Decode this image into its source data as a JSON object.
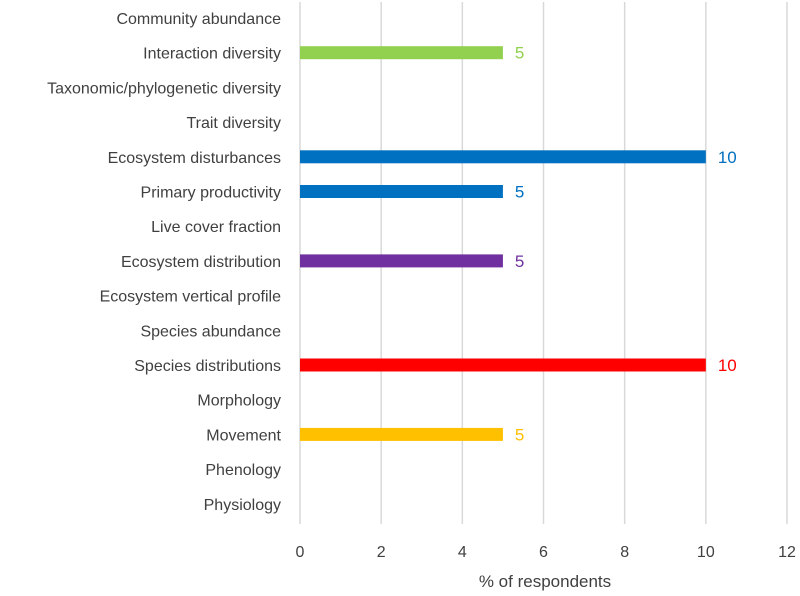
{
  "chart_data": {
    "type": "bar",
    "orientation": "horizontal",
    "categories": [
      "Community abundance",
      "Interaction diversity",
      "Taxonomic/phylogenetic diversity",
      "Trait diversity",
      "Ecosystem disturbances",
      "Primary productivity",
      "Live cover fraction",
      "Ecosystem distribution",
      "Ecosystem vertical profile",
      "Species abundance",
      "Species distributions",
      "Morphology",
      "Movement",
      "Phenology",
      "Physiology"
    ],
    "values": [
      0,
      5,
      0,
      0,
      10,
      5,
      0,
      5,
      0,
      0,
      10,
      0,
      5,
      0,
      0
    ],
    "data_labels": [
      "",
      "5",
      "",
      "",
      "10",
      "5",
      "",
      "5",
      "",
      "",
      "10",
      "",
      "5",
      "",
      ""
    ],
    "colors": [
      "#92D050",
      "#92D050",
      "#0070C0",
      "#0070C0",
      "#0070C0",
      "#0070C0",
      "#0070C0",
      "#7030A0",
      "#7030A0",
      "#FF0000",
      "#FF0000",
      "#FFC000",
      "#FFC000",
      "#FFC000",
      "#FFC000"
    ],
    "xlabel": "% of respondents",
    "ylabel": "",
    "xlim": [
      0,
      12
    ],
    "x_ticks": [
      "0",
      "2",
      "4",
      "6",
      "8",
      "10",
      "12"
    ],
    "grid": "vertical",
    "legend": "none"
  }
}
